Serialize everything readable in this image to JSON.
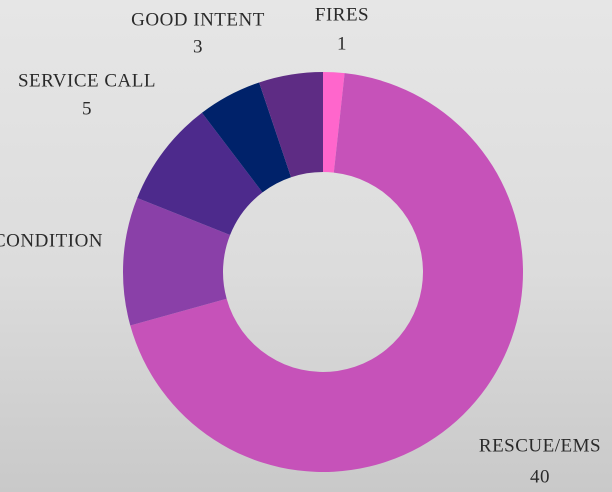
{
  "chart_data": {
    "type": "donut",
    "categories": [
      "FIRES",
      "RESCUE/EMS",
      "CONDITION",
      "SERVICE CALL",
      "GOOD INTENT",
      null
    ],
    "values": [
      1,
      40,
      6,
      5,
      3,
      3
    ],
    "colors": [
      "#ff66cc",
      "#c652b9",
      "#8a40a8",
      "#4d2a8c",
      "#00226a",
      "#5e2c84"
    ],
    "show_values": [
      true,
      true,
      false,
      true,
      true,
      false
    ]
  }
}
